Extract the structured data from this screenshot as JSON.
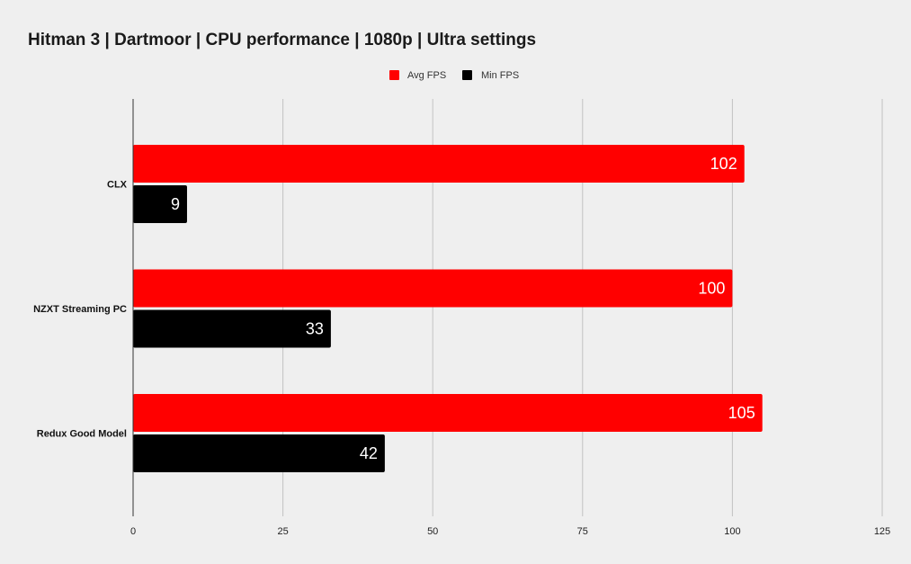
{
  "chart_data": {
    "type": "bar",
    "orientation": "horizontal",
    "title": "Hitman 3 | Dartmoor | CPU performance | 1080p | Ultra settings",
    "categories": [
      "CLX",
      "NZXT Streaming PC",
      "Redux Good Model"
    ],
    "series": [
      {
        "name": "Avg FPS",
        "color": "#ff0000",
        "values": [
          102,
          100,
          105
        ]
      },
      {
        "name": "Min FPS",
        "color": "#000000",
        "values": [
          9,
          33,
          42
        ]
      }
    ],
    "xlim": [
      0,
      125
    ],
    "xticks": [
      0,
      25,
      50,
      75,
      100,
      125
    ],
    "grid": true,
    "legend": "top-center",
    "data_labels": true
  }
}
